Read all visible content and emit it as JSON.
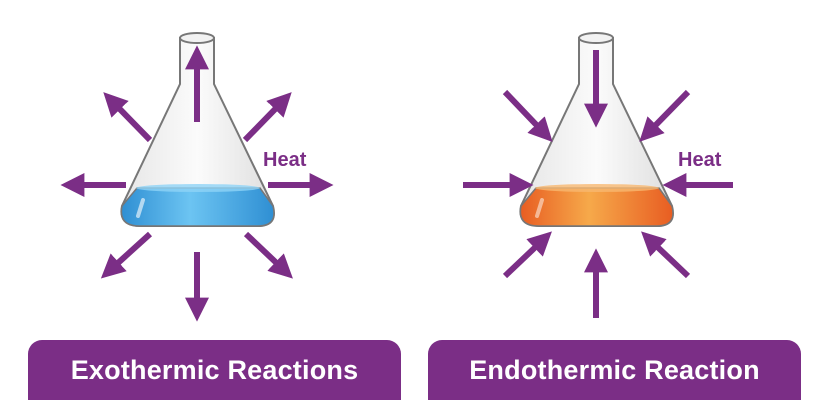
{
  "panels": [
    {
      "id": "exothermic",
      "title": "Exothermic Reactions",
      "heat_label": "Heat",
      "liquid_color": "#4aaee6",
      "arrow_direction": "outward"
    },
    {
      "id": "endothermic",
      "title": "Endothermic Reaction",
      "heat_label": "Heat",
      "liquid_color": "#ef7d2f",
      "arrow_direction": "inward"
    }
  ],
  "colors": {
    "arrow": "#7b2e86",
    "label_bg": "#7b2e86",
    "label_text": "#ffffff"
  }
}
